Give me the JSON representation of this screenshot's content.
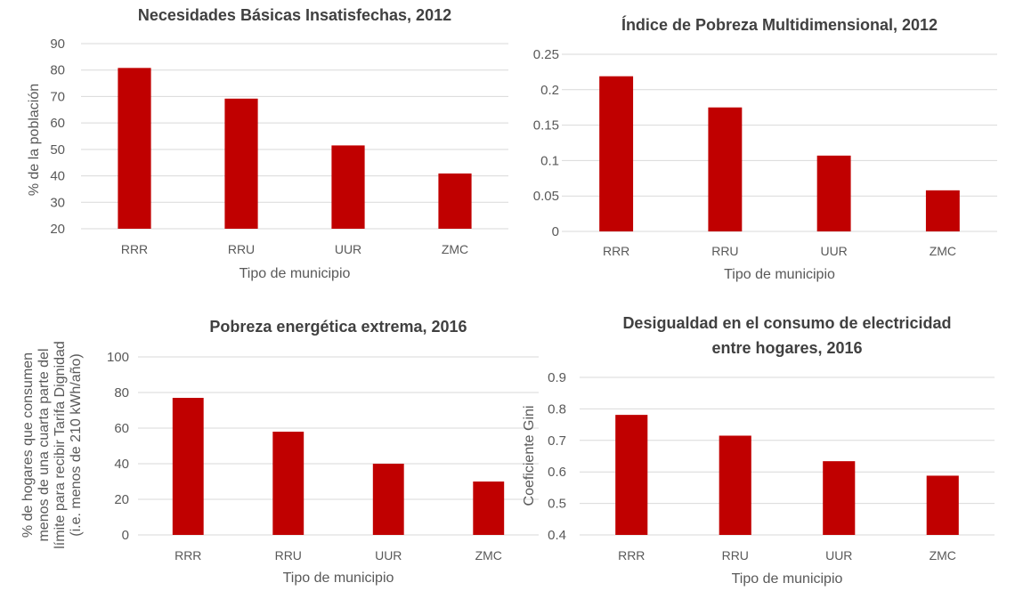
{
  "bar_color": "#c00000",
  "grid_color": "#d9d9d9",
  "chart_data": [
    {
      "type": "bar",
      "title_lines": [
        "Necesidades Básicas Insatisfechas, 2012"
      ],
      "xlabel": "Tipo de municipio",
      "ylabel_lines": [
        "% de la población"
      ],
      "categories": [
        "RRR",
        "RRU",
        "UUR",
        "ZMC"
      ],
      "values": [
        80.8,
        69.2,
        51.5,
        40.9
      ],
      "ylim": [
        20,
        90
      ],
      "yticks": [
        20,
        30,
        40,
        50,
        60,
        70,
        80,
        90
      ],
      "ytick_labels": [
        "20",
        "30",
        "40",
        "50",
        "60",
        "70",
        "80",
        "90"
      ],
      "grid": true
    },
    {
      "type": "bar",
      "title_lines": [
        "Índice de Pobreza Multidimensional, 2012"
      ],
      "xlabel": "Tipo de municipio",
      "ylabel_lines": [],
      "categories": [
        "RRR",
        "RRU",
        "UUR",
        "ZMC"
      ],
      "values": [
        0.219,
        0.175,
        0.107,
        0.058
      ],
      "ylim": [
        0,
        0.25
      ],
      "yticks": [
        0,
        0.05,
        0.1,
        0.15,
        0.2,
        0.25
      ],
      "ytick_labels": [
        "0",
        "0.05",
        "0.1",
        "0.15",
        "0.2",
        "0.25"
      ],
      "grid": true
    },
    {
      "type": "bar",
      "title_lines": [
        "Pobreza energética extrema, 2016"
      ],
      "xlabel": "Tipo de municipio",
      "ylabel_lines": [
        "% de hogares que consumen",
        "menos de una cuarta parte del",
        "límite para recibir Tarifa Dignidad",
        "(i.e. menos de 210 kWh/año)"
      ],
      "categories": [
        "RRR",
        "RRU",
        "UUR",
        "ZMC"
      ],
      "values": [
        77,
        58,
        40,
        30
      ],
      "ylim": [
        0,
        100
      ],
      "yticks": [
        0,
        20,
        40,
        60,
        80,
        100
      ],
      "ytick_labels": [
        "0",
        "20",
        "40",
        "60",
        "80",
        "100"
      ],
      "grid": true
    },
    {
      "type": "bar",
      "title_lines": [
        "Desigualdad en el consumo de electricidad",
        "entre hogares, 2016"
      ],
      "xlabel": "Tipo de municipio",
      "ylabel_lines": [
        "Coeficiente Gini"
      ],
      "categories": [
        "RRR",
        "RRU",
        "UUR",
        "ZMC"
      ],
      "values": [
        0.781,
        0.715,
        0.634,
        0.588
      ],
      "ylim": [
        0.4,
        0.9
      ],
      "yticks": [
        0.4,
        0.5,
        0.6,
        0.7,
        0.8,
        0.9
      ],
      "ytick_labels": [
        "0.4",
        "0.5",
        "0.6",
        "0.7",
        "0.8",
        "0.9"
      ],
      "grid": true
    }
  ]
}
